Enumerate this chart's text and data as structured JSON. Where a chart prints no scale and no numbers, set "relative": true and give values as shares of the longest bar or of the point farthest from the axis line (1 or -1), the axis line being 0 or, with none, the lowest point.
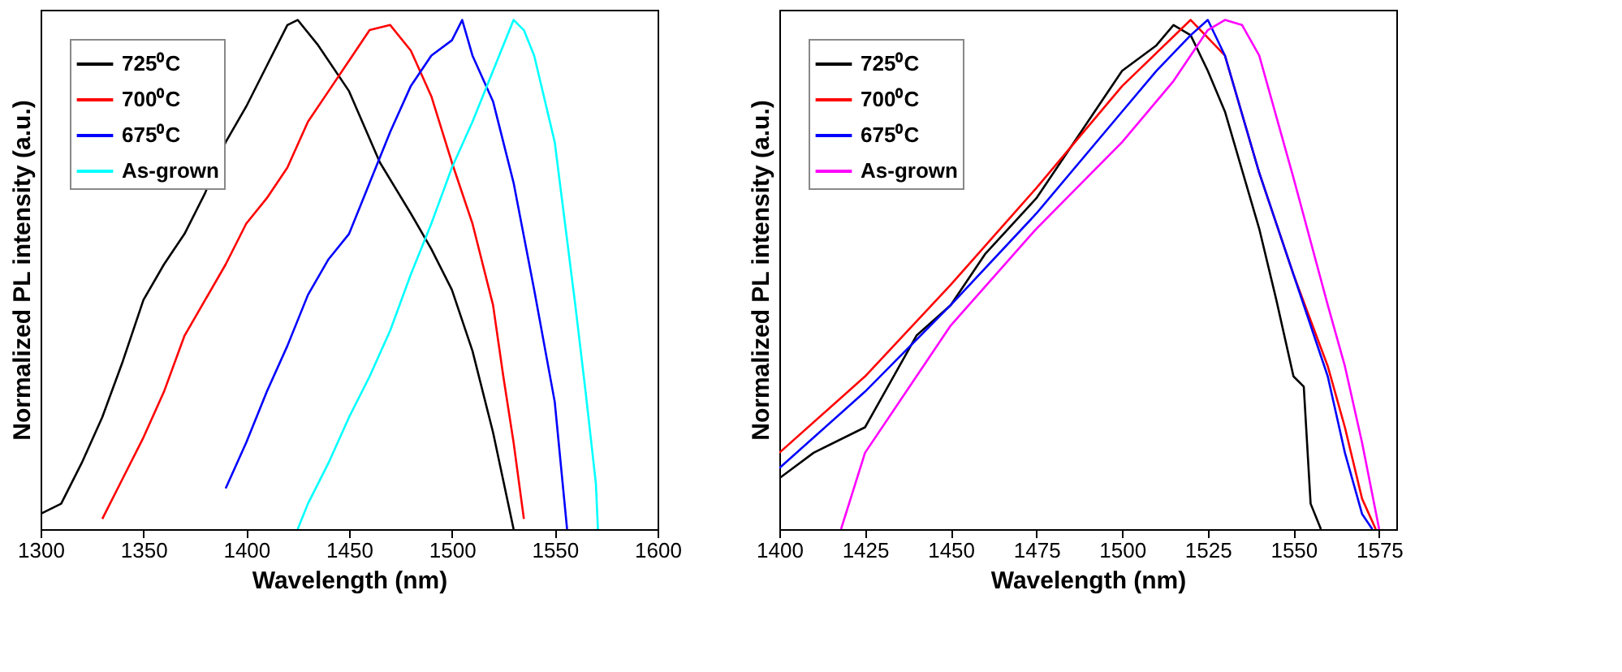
{
  "chart_data": [
    {
      "type": "line",
      "xlabel": "Wavelength (nm)",
      "ylabel": "Normalized PL intensity (a.u.)",
      "xlim": [
        1300,
        1600
      ],
      "xticks": [
        1300,
        1350,
        1400,
        1450,
        1500,
        1550,
        1600
      ],
      "relative": true,
      "legend": "top left",
      "grid": false,
      "line_style": "solid",
      "series": [
        {
          "name": "725⁰C",
          "color": "#000000",
          "x": [
            1300,
            1310,
            1320,
            1330,
            1340,
            1350,
            1360,
            1370,
            1380,
            1390,
            1400,
            1410,
            1420,
            1425,
            1435,
            1450,
            1465,
            1480,
            1490,
            1500,
            1510,
            1520,
            1530
          ],
          "values": [
            0.03,
            0.05,
            0.13,
            0.22,
            0.33,
            0.45,
            0.52,
            0.58,
            0.66,
            0.76,
            0.83,
            0.91,
            0.99,
            1.0,
            0.95,
            0.86,
            0.72,
            0.62,
            0.55,
            0.47,
            0.35,
            0.19,
            0.0
          ]
        },
        {
          "name": "700⁰C",
          "color": "#ff0000",
          "x": [
            1330,
            1340,
            1350,
            1360,
            1370,
            1380,
            1390,
            1400,
            1410,
            1420,
            1430,
            1440,
            1450,
            1460,
            1470,
            1480,
            1490,
            1500,
            1510,
            1520,
            1525,
            1530,
            1535
          ],
          "values": [
            0.02,
            0.1,
            0.18,
            0.27,
            0.38,
            0.45,
            0.52,
            0.6,
            0.65,
            0.71,
            0.8,
            0.86,
            0.92,
            0.98,
            0.99,
            0.94,
            0.85,
            0.72,
            0.6,
            0.44,
            0.3,
            0.17,
            0.02
          ]
        },
        {
          "name": "675⁰C",
          "color": "#0000ff",
          "x": [
            1390,
            1400,
            1410,
            1420,
            1430,
            1440,
            1450,
            1460,
            1470,
            1480,
            1490,
            1500,
            1505,
            1510,
            1520,
            1530,
            1540,
            1550,
            1556
          ],
          "values": [
            0.08,
            0.17,
            0.27,
            0.36,
            0.46,
            0.53,
            0.58,
            0.68,
            0.78,
            0.87,
            0.93,
            0.96,
            1.0,
            0.93,
            0.84,
            0.68,
            0.47,
            0.25,
            0.0
          ]
        },
        {
          "name": "As-grown",
          "color": "#00ffff",
          "x": [
            1425,
            1430,
            1440,
            1450,
            1460,
            1470,
            1480,
            1490,
            1500,
            1510,
            1520,
            1530,
            1535,
            1540,
            1550,
            1560,
            1565,
            1570,
            1571
          ],
          "values": [
            0.0,
            0.05,
            0.13,
            0.22,
            0.3,
            0.39,
            0.5,
            0.6,
            0.71,
            0.8,
            0.9,
            1.0,
            0.98,
            0.93,
            0.76,
            0.44,
            0.27,
            0.09,
            0.0
          ]
        }
      ]
    },
    {
      "type": "line",
      "xlabel": "Wavelength (nm)",
      "ylabel": "Normalized PL intensity (a.u.)",
      "xlim": [
        1400,
        1580
      ],
      "xticks": [
        1400,
        1425,
        1450,
        1475,
        1500,
        1525,
        1550,
        1575
      ],
      "relative": true,
      "legend": "top left",
      "grid": false,
      "line_style": "solid",
      "series": [
        {
          "name": "725⁰C",
          "color": "#000000",
          "x": [
            1400,
            1410,
            1425,
            1440,
            1450,
            1460,
            1475,
            1490,
            1500,
            1510,
            1515,
            1520,
            1525,
            1530,
            1540,
            1545,
            1550,
            1553,
            1555,
            1558
          ],
          "values": [
            0.1,
            0.15,
            0.2,
            0.38,
            0.44,
            0.54,
            0.65,
            0.8,
            0.9,
            0.95,
            0.99,
            0.97,
            0.9,
            0.82,
            0.59,
            0.45,
            0.3,
            0.28,
            0.05,
            0.0
          ]
        },
        {
          "name": "700⁰C",
          "color": "#ff0000",
          "x": [
            1400,
            1425,
            1450,
            1475,
            1500,
            1520,
            1530,
            1540,
            1550,
            1560,
            1565,
            1570,
            1574
          ],
          "values": [
            0.15,
            0.3,
            0.48,
            0.67,
            0.87,
            1.0,
            0.93,
            0.7,
            0.5,
            0.32,
            0.2,
            0.06,
            0.0
          ]
        },
        {
          "name": "675⁰C",
          "color": "#0000ff",
          "x": [
            1400,
            1425,
            1450,
            1475,
            1500,
            1510,
            1520,
            1525,
            1530,
            1540,
            1550,
            1560,
            1565,
            1570,
            1573
          ],
          "values": [
            0.12,
            0.27,
            0.44,
            0.62,
            0.82,
            0.9,
            0.97,
            1.0,
            0.93,
            0.7,
            0.5,
            0.3,
            0.15,
            0.03,
            0.0
          ]
        },
        {
          "name": "As-grown",
          "color": "#ff00ff",
          "x": [
            1418,
            1425,
            1450,
            1475,
            1500,
            1515,
            1525,
            1530,
            1535,
            1540,
            1550,
            1560,
            1565,
            1570,
            1575
          ],
          "values": [
            0.0,
            0.15,
            0.4,
            0.59,
            0.76,
            0.88,
            0.98,
            1.0,
            0.99,
            0.93,
            0.69,
            0.44,
            0.32,
            0.17,
            0.0
          ]
        }
      ]
    }
  ]
}
